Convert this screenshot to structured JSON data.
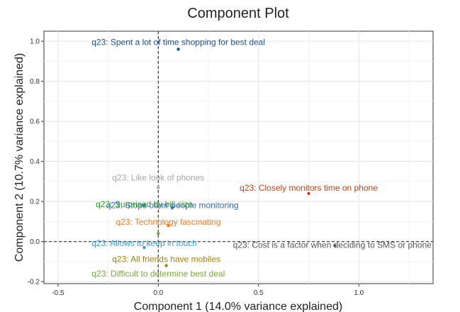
{
  "chart_data": {
    "type": "scatter",
    "title": "Component Plot",
    "xlabel": "Component 1 (14.0% variance explained)",
    "ylabel": "Component 2 (10.7% variance explained)",
    "xlim": [
      -0.57,
      1.37
    ],
    "ylim": [
      -0.21,
      1.05
    ],
    "x_ticks": [
      -0.5,
      0,
      0.5,
      1
    ],
    "x_tick_labels": [
      "-0.5",
      "0.0",
      "0.5",
      "1.0"
    ],
    "y_ticks": [
      -0.2,
      0,
      0.2,
      0.4,
      0.6,
      0.8,
      1
    ],
    "y_tick_labels": [
      "-0.2",
      "0.0",
      "0.2",
      "0.4",
      "0.6",
      "0.8",
      "1.0"
    ],
    "grid": true,
    "reference_lines": {
      "x": 0,
      "y": 0
    },
    "points": [
      {
        "label": "q23: Spent a lot of time shopping for best deal",
        "x": 0.1,
        "y": 0.96,
        "color": "#1f4e8c"
      },
      {
        "label": "q23: Like look of phones",
        "x": 0.0,
        "y": 0.27,
        "color": "#a6a6a6"
      },
      {
        "label": "q23: Stops other people monitoring",
        "x": 0.07,
        "y": 0.17,
        "color": "#3366cc"
      },
      {
        "label": "q23: Surprised by bill size",
        "x": -0.07,
        "y": 0.18,
        "color": "#2ca02c"
      },
      {
        "label": "q23: Closely monitors time on phone",
        "x": 0.75,
        "y": 0.24,
        "color": "#b5451b"
      },
      {
        "label": "q23: Technology fascinating",
        "x": 0.05,
        "y": 0.08,
        "color": "#ef7b24"
      },
      {
        "label": "q23: Allows to keep in touch",
        "x": -0.07,
        "y": -0.03,
        "color": "#3a9ad9"
      },
      {
        "label": "q23: Cost is a factor when deciding to SMS or phone",
        "x": 0.88,
        "y": -0.02,
        "color": "#555555"
      },
      {
        "label": "q23: All friends have mobiles",
        "x": 0.04,
        "y": -0.12,
        "color": "#a3830e"
      },
      {
        "label": "q23: Difficult to determine best deal",
        "x": 0.0,
        "y": 0.04,
        "color": "#76a83a"
      }
    ]
  }
}
